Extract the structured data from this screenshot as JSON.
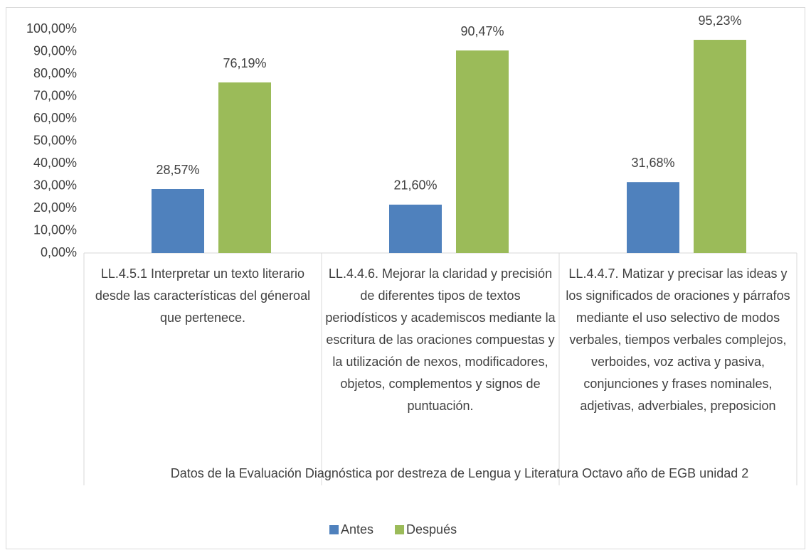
{
  "chart_data": {
    "type": "bar",
    "categories": [
      "LL.4.5.1 Interpretar un texto literario desde las características del géneroal que pertenece.",
      "LL.4.4.6. Mejorar la claridad y precisión de diferentes tipos de textos periodísticos y academiscos mediante la escritura de las oraciones compuestas y la utilización de nexos, modificadores, objetos, complementos y signos de puntuación.",
      "LL.4.4.7. Matizar y precisar las ideas y los significados de oraciones y párrafos mediante el uso selectivo de modos verbales, tiempos verbales complejos, verboides, voz activa y pasiva, conjunciones y frases nominales, adjetivas, adverbiales, preposicion"
    ],
    "series": [
      {
        "name": "Antes",
        "color": "#4f81bd",
        "values": [
          28.57,
          21.6,
          31.68
        ],
        "value_labels": [
          "28,57%",
          "21,60%",
          "31,68%"
        ]
      },
      {
        "name": "Después",
        "color": "#9bbb59",
        "values": [
          76.19,
          90.47,
          95.23
        ],
        "value_labels": [
          "76,19%",
          "90,47%",
          "95,23%"
        ]
      }
    ],
    "xlabel": "Datos  de la Evaluación Diagnóstica por destreza de Lengua y Literatura Octavo año de EGB unidad 2",
    "ylim": [
      0,
      100
    ],
    "yticks": [
      {
        "value": 0,
        "label": "0,00%"
      },
      {
        "value": 10,
        "label": "10,00%"
      },
      {
        "value": 20,
        "label": "20,00%"
      },
      {
        "value": 30,
        "label": "30,00%"
      },
      {
        "value": 40,
        "label": "40,00%"
      },
      {
        "value": 50,
        "label": "50,00%"
      },
      {
        "value": 60,
        "label": "60,00%"
      },
      {
        "value": 70,
        "label": "70,00%"
      },
      {
        "value": 80,
        "label": "80,00%"
      },
      {
        "value": 90,
        "label": "90,00%"
      },
      {
        "value": 100,
        "label": "100,00%"
      }
    ],
    "grid": false,
    "legend": "bottom"
  }
}
